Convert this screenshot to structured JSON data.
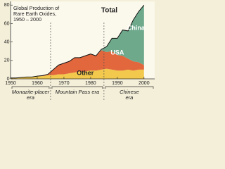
{
  "chart_data": {
    "type": "stacked-area",
    "title_lines": [
      "Global Production of",
      "Rare Earth Oxides,",
      "1950 – 2000"
    ],
    "total_label": "Total",
    "x": [
      1950,
      1952,
      1954,
      1956,
      1958,
      1960,
      1962,
      1964,
      1966,
      1968,
      1970,
      1972,
      1974,
      1976,
      1978,
      1980,
      1982,
      1984,
      1986,
      1988,
      1990,
      1992,
      1994,
      1996,
      1998,
      2000
    ],
    "series": [
      {
        "name": "Other",
        "color": "#f2c94c",
        "values": [
          1,
          1,
          1.5,
          2,
          2,
          3,
          3,
          4,
          4,
          5,
          5,
          6,
          7,
          8,
          8,
          9,
          9,
          10,
          11,
          10,
          9,
          9,
          10,
          9,
          10,
          10
        ]
      },
      {
        "name": "USA",
        "color": "#e2673d",
        "values": [
          0,
          0,
          0,
          0,
          0,
          0,
          0.5,
          1,
          6,
          10,
          12,
          13,
          16,
          15,
          17,
          18,
          16,
          21,
          18,
          20,
          17,
          16,
          12,
          10,
          8,
          5
        ]
      },
      {
        "name": "China",
        "color": "#6fa98c",
        "values": [
          0,
          0,
          0,
          0,
          0,
          0,
          0,
          0,
          0,
          0,
          0,
          0,
          0,
          0,
          0,
          0,
          0,
          1,
          6,
          14,
          18,
          28,
          30,
          45,
          55,
          65
        ]
      }
    ],
    "xlim": [
      1950,
      2004
    ],
    "ylim": [
      0,
      84
    ],
    "xticks": [
      1950,
      1960,
      1970,
      1980,
      1990,
      2000
    ],
    "yticks": [
      0,
      20,
      40,
      60,
      80
    ],
    "eras": [
      {
        "lines": [
          "Monazite-placer",
          "era"
        ],
        "start": 1950,
        "end": 1965
      },
      {
        "lines": [
          "Mountain Pass era"
        ],
        "start": 1965,
        "end": 1985
      },
      {
        "lines": [
          "Chinese",
          "era"
        ],
        "start": 1985,
        "end": 2004
      }
    ]
  }
}
